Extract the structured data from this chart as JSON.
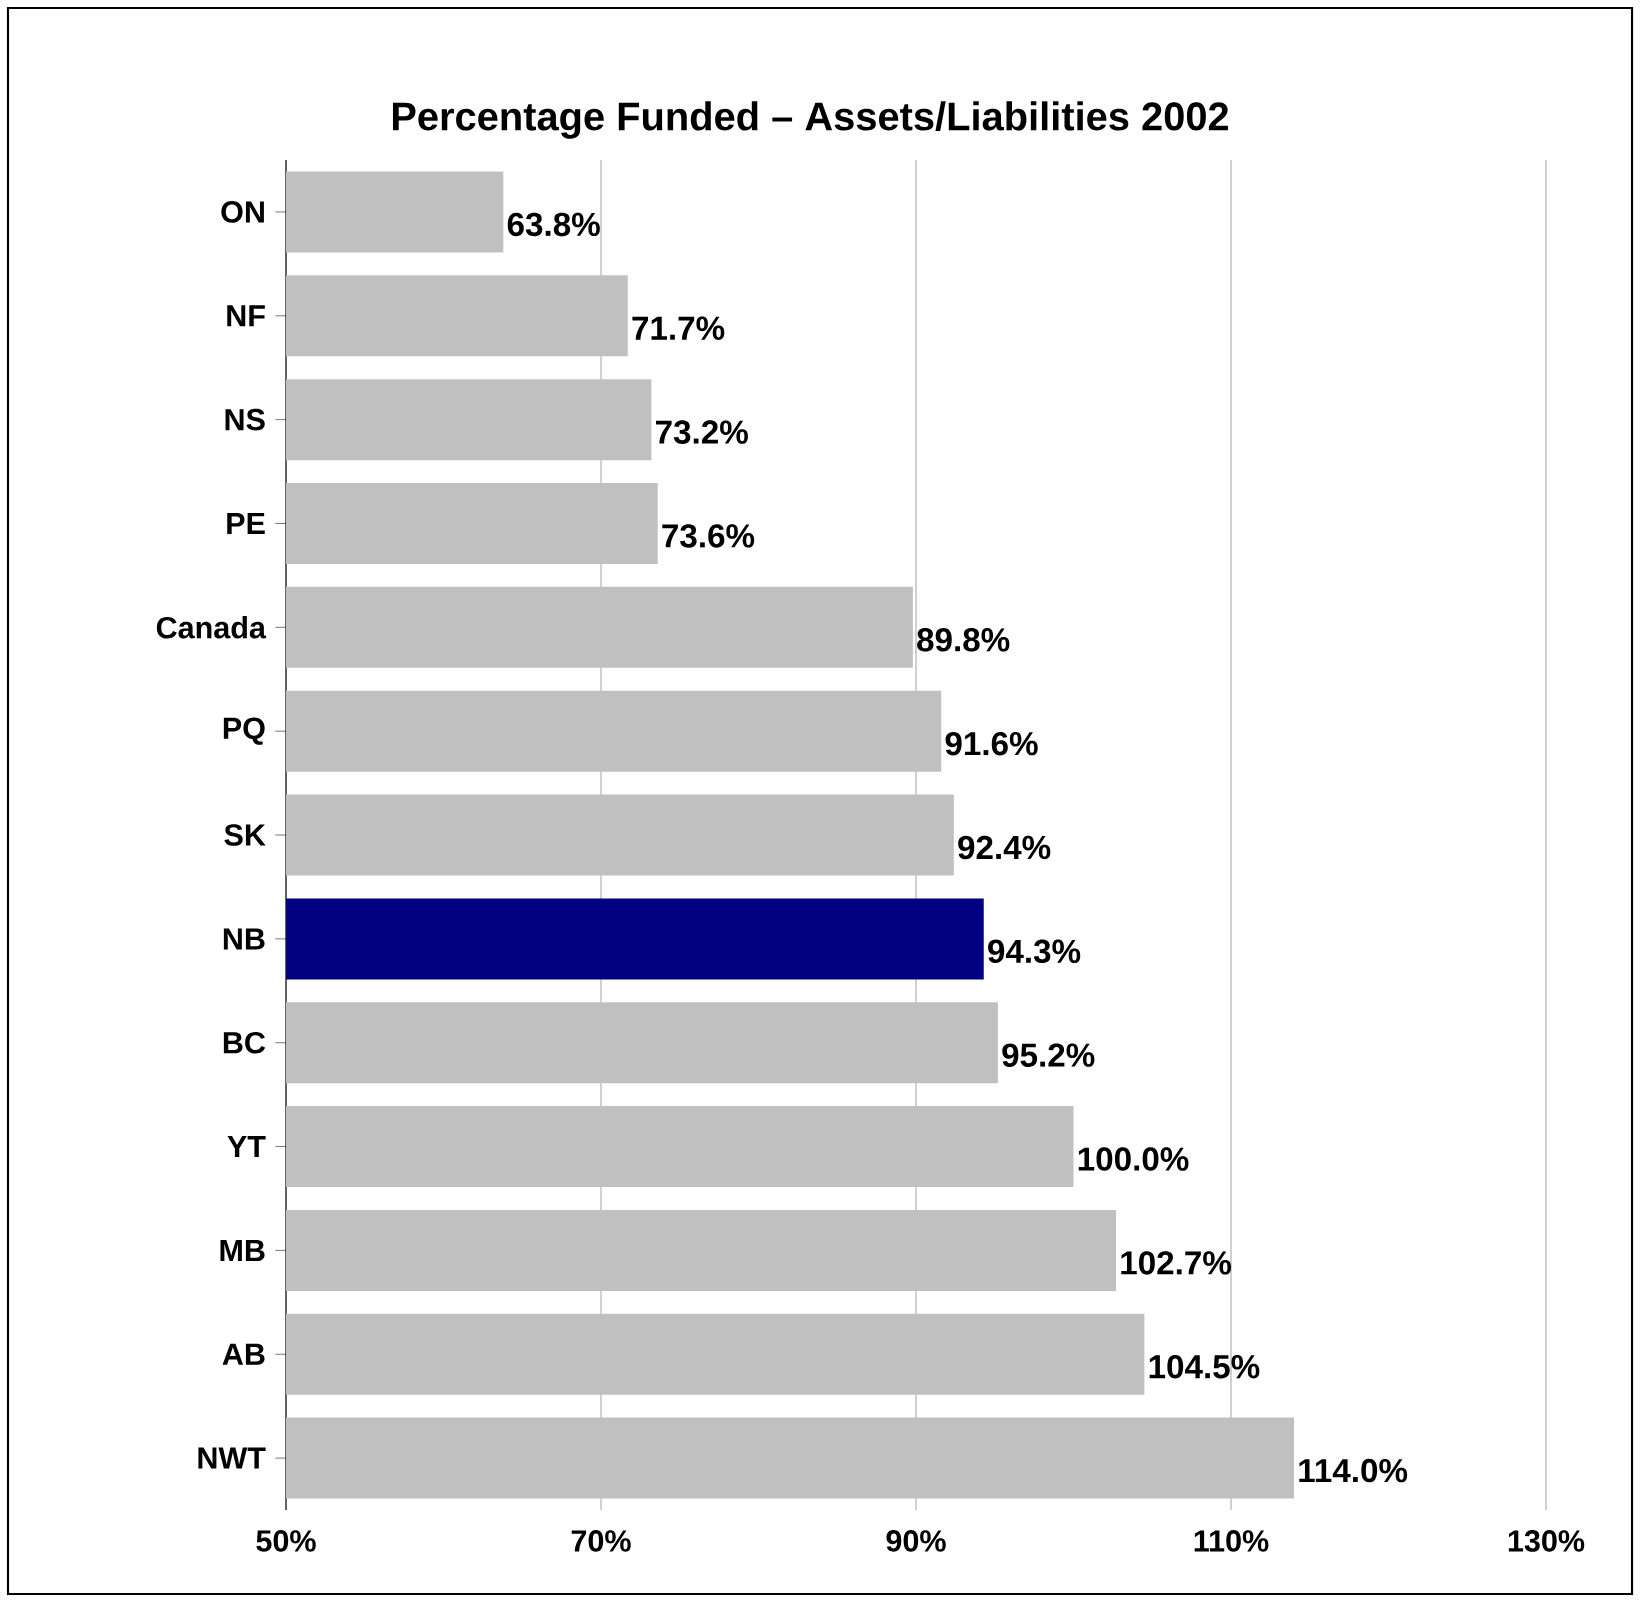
{
  "chart_data": {
    "type": "bar",
    "orientation": "horizontal",
    "title": "Percentage Funded – Assets/Liabilities 2002",
    "categories": [
      "ON",
      "NF",
      "NS",
      "PE",
      "Canada",
      "PQ",
      "SK",
      "NB",
      "BC",
      "YT",
      "MB",
      "AB",
      "NWT"
    ],
    "values": [
      63.8,
      71.7,
      73.2,
      73.6,
      89.8,
      91.6,
      92.4,
      94.3,
      95.2,
      100.0,
      102.7,
      104.5,
      114.0
    ],
    "value_labels": [
      "63.8%",
      "71.7%",
      "73.2%",
      "73.6%",
      "89.8%",
      "91.6%",
      "92.4%",
      "94.3%",
      "95.2%",
      "100.0%",
      "102.7%",
      "104.5%",
      "114.0%"
    ],
    "colors": [
      "#c0c0c0",
      "#c0c0c0",
      "#c0c0c0",
      "#c0c0c0",
      "#c0c0c0",
      "#c0c0c0",
      "#c0c0c0",
      "#000080",
      "#c0c0c0",
      "#c0c0c0",
      "#c0c0c0",
      "#c0c0c0",
      "#c0c0c0"
    ],
    "xlim": [
      50,
      130
    ],
    "xticks": [
      {
        "value": 50,
        "label": "50%"
      },
      {
        "value": 70,
        "label": "70%"
      },
      {
        "value": 90,
        "label": "90%"
      },
      {
        "value": 110,
        "label": "110%"
      },
      {
        "value": 130,
        "label": "130%"
      }
    ],
    "grid": "x"
  }
}
